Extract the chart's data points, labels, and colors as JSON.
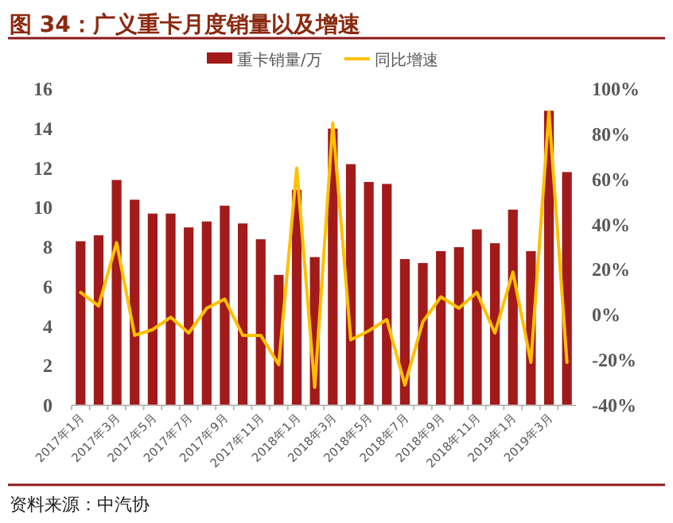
{
  "chart_data": {
    "type": "bar",
    "title": "图 34：广义重卡月度销量以及增速",
    "categories": [
      "2017年1月",
      null,
      "2017年3月",
      null,
      "2017年5月",
      null,
      "2017年7月",
      null,
      "2017年9月",
      null,
      "2017年11月",
      null,
      "2018年1月",
      null,
      "2018年3月",
      null,
      "2018年5月",
      null,
      "2018年7月",
      null,
      "2018年9月",
      null,
      "2018年11月",
      null,
      "2019年1月",
      null,
      "2019年3月",
      null
    ],
    "series": [
      {
        "name": "重卡销量/万",
        "color": "#a31a1a",
        "values": [
          8.3,
          8.6,
          11.4,
          10.4,
          9.7,
          9.7,
          9.0,
          9.3,
          10.1,
          9.2,
          8.4,
          6.6,
          10.9,
          7.5,
          14.0,
          12.2,
          11.3,
          11.2,
          7.4,
          7.2,
          7.8,
          8.0,
          8.9,
          8.2,
          9.9,
          7.8,
          14.9,
          11.8
        ]
      },
      {
        "name": "同比增速",
        "type": "line",
        "axis": "y2",
        "color": "#ffc000",
        "values": [
          10,
          4,
          32,
          -9,
          -6.5,
          -1,
          -8,
          3,
          7,
          -9,
          -9,
          -22,
          65,
          -32,
          85,
          -11,
          -7,
          -2,
          -31,
          -3,
          8,
          3,
          10,
          -8,
          19,
          -21,
          90,
          -21
        ]
      }
    ],
    "ylim": [
      0,
      16
    ],
    "yticks": [
      0,
      2,
      4,
      6,
      8,
      10,
      12,
      14,
      16
    ],
    "y2lim": [
      -40,
      100
    ],
    "y2ticks": [
      {
        "value": -40,
        "label": "-40%"
      },
      {
        "value": -20,
        "label": "-20%"
      },
      {
        "value": 0,
        "label": "0%"
      },
      {
        "value": 20,
        "label": "20%"
      },
      {
        "value": 40,
        "label": "40%"
      },
      {
        "value": 60,
        "label": "60%"
      },
      {
        "value": 80,
        "label": "80%"
      },
      {
        "value": 100,
        "label": "100%"
      }
    ],
    "legend": "top",
    "grid": false,
    "annotations": [
      "资料来源：中汽协"
    ]
  }
}
